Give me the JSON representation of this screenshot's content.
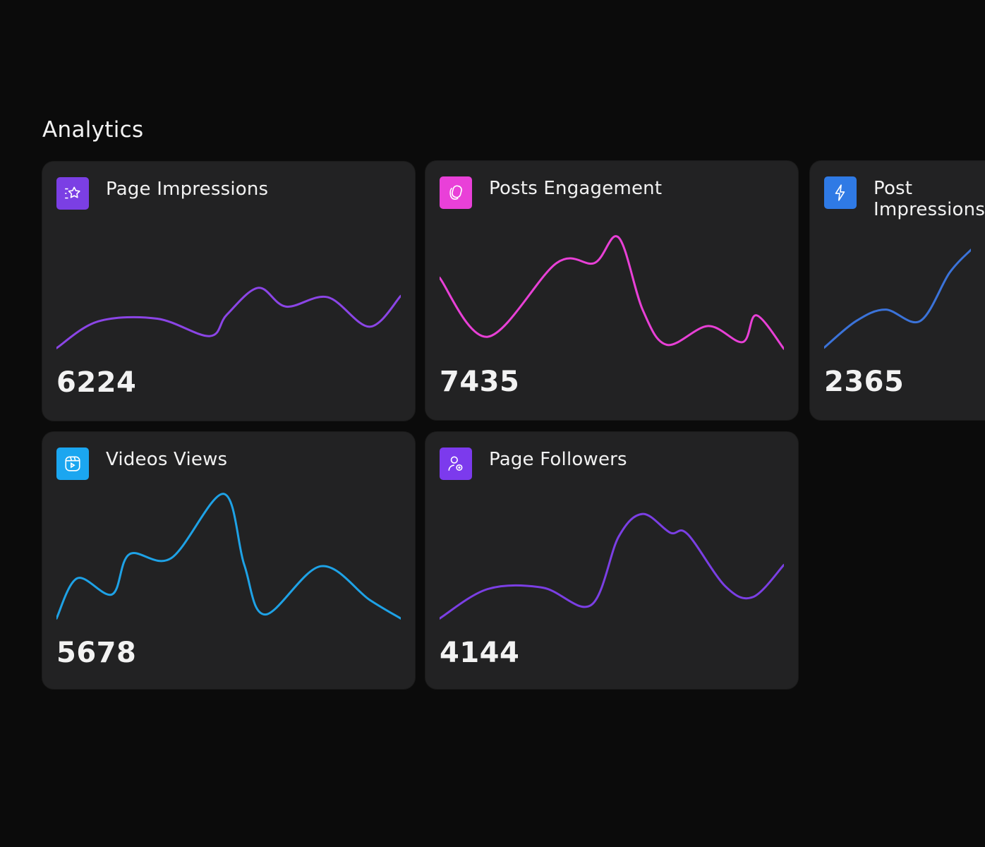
{
  "header": {
    "title": "Analytics"
  },
  "chart_data": [
    {
      "type": "line",
      "title": "Page Impressions",
      "value": "6224",
      "icon": "star-list-icon",
      "color": "#8b45e6",
      "icon_bg": "#7b3fe4",
      "ylim": [
        0,
        100
      ],
      "x": [
        0,
        12,
        29,
        44,
        49,
        58,
        66,
        78,
        90,
        99
      ],
      "y": [
        3,
        23,
        25,
        12,
        28,
        48,
        34,
        41,
        19,
        42
      ]
    },
    {
      "type": "line",
      "title": "Posts Engagement",
      "value": "7435",
      "icon": "cards-icon",
      "color": "#e840d6",
      "icon_bg": "#e940d8",
      "ylim": [
        0,
        100
      ],
      "x": [
        0,
        14,
        34,
        45,
        52,
        59,
        66,
        78,
        88,
        92,
        100
      ],
      "y": [
        55,
        11,
        66,
        66,
        85,
        31,
        5,
        19,
        7,
        27,
        2
      ]
    },
    {
      "type": "line",
      "title": "Post Impressions",
      "value": "2365",
      "icon": "lightning-icon",
      "color": "#3b73d9",
      "icon_bg": "#2f7ae5",
      "ylim": [
        0,
        100
      ],
      "x": [
        0,
        12,
        23,
        36,
        47,
        55
      ],
      "y": [
        3,
        24,
        33,
        24,
        62,
        80
      ]
    },
    {
      "type": "line",
      "title": "Videos Views",
      "value": "5678",
      "icon": "video-reel-icon",
      "color": "#1ea2e6",
      "icon_bg": "#1ba6f0",
      "ylim": [
        0,
        100
      ],
      "x": [
        0,
        6,
        16,
        21,
        33,
        48,
        54,
        60,
        76,
        90,
        99
      ],
      "y": [
        3,
        33,
        21,
        51,
        48,
        96,
        43,
        6,
        42,
        17,
        3
      ]
    },
    {
      "type": "line",
      "title": "Page Followers",
      "value": "4144",
      "icon": "user-add-icon",
      "color": "#7b3fe4",
      "icon_bg": "#7c3aed",
      "ylim": [
        0,
        100
      ],
      "x": [
        0,
        14,
        30,
        44,
        52,
        59,
        67,
        72,
        83,
        91,
        100
      ],
      "y": [
        3,
        25,
        26,
        13,
        64,
        81,
        67,
        66,
        27,
        19,
        43
      ]
    }
  ]
}
